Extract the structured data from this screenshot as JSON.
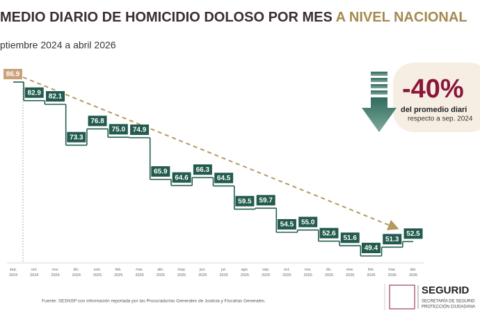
{
  "chart_data": {
    "type": "step",
    "title": "MEDIO DIARIO DE HOMICIDIO DOLOSO POR MES",
    "title_highlight": "A NIVEL NACIONAL",
    "subtitle": "ptiembre 2024 a abril 2026",
    "categories": [
      {
        "month": "sep.",
        "year": "2024"
      },
      {
        "month": "oct.",
        "year": "2024"
      },
      {
        "month": "nov.",
        "year": "2024"
      },
      {
        "month": "dic.",
        "year": "2024"
      },
      {
        "month": "ene.",
        "year": "2025"
      },
      {
        "month": "feb.",
        "year": "2025"
      },
      {
        "month": "mar.",
        "year": "2025"
      },
      {
        "month": "abr.",
        "year": "2025"
      },
      {
        "month": "may.",
        "year": "2025"
      },
      {
        "month": "jun.",
        "year": "2025"
      },
      {
        "month": "jul.",
        "year": "2025"
      },
      {
        "month": "ago.",
        "year": "2025"
      },
      {
        "month": "sep.",
        "year": "2025"
      },
      {
        "month": "oct.",
        "year": "2025"
      },
      {
        "month": "nov.",
        "year": "2025"
      },
      {
        "month": "dic.",
        "year": "2025"
      },
      {
        "month": "ene.",
        "year": "2026"
      },
      {
        "month": "feb.",
        "year": "2026"
      },
      {
        "month": "mar.",
        "year": "2026"
      },
      {
        "month": "abr.",
        "year": "2026"
      }
    ],
    "values": [
      86.9,
      82.9,
      82.1,
      73.3,
      76.8,
      75.0,
      74.9,
      65.9,
      64.6,
      66.3,
      64.5,
      59.5,
      59.7,
      54.5,
      55.0,
      52.6,
      51.6,
      49.4,
      51.3,
      52.5
    ],
    "value_labels": [
      "86.9",
      "82.9",
      "82.1",
      "73.3",
      "76.8",
      "75.0",
      "74.9",
      "65.9",
      "64.6",
      "66.3",
      "64.5",
      "59.5",
      "59.7",
      "54.5",
      "55.0",
      "52.6",
      "51.6",
      "49.4",
      "51.3",
      "52.5"
    ],
    "color": "#235b4e",
    "baseline_color": "#c9a27a",
    "callout": {
      "value": "-40%",
      "line1": "del promedio diari",
      "line2": "respecto a sep. 2024"
    },
    "source": "Fuente: SESNSP con información reportada por las Procuradurías Generales de Justicia y Fiscalías Generales.",
    "logo": {
      "name": "SEGURID",
      "line1": "SECRETARÍA DE SEGURID",
      "line2": "PROTECCIÓN CIUDADANA"
    }
  }
}
